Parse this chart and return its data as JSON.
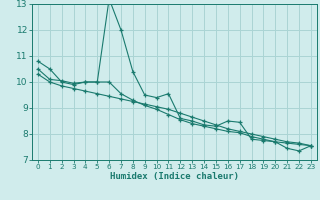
{
  "xlabel": "Humidex (Indice chaleur)",
  "x_values": [
    0,
    1,
    2,
    3,
    4,
    5,
    6,
    7,
    8,
    9,
    10,
    11,
    12,
    13,
    14,
    15,
    16,
    17,
    18,
    19,
    20,
    21,
    22,
    23
  ],
  "line1_y": [
    10.8,
    10.5,
    10.0,
    9.9,
    10.0,
    10.0,
    13.2,
    12.0,
    10.4,
    9.5,
    9.4,
    9.55,
    8.6,
    8.5,
    8.35,
    8.3,
    8.5,
    8.45,
    7.8,
    7.75,
    7.7,
    7.45,
    7.35,
    7.55
  ],
  "line2_y": [
    10.5,
    10.1,
    10.05,
    9.95,
    10.0,
    10.0,
    10.0,
    9.55,
    9.3,
    9.1,
    8.95,
    8.75,
    8.55,
    8.4,
    8.3,
    8.2,
    8.1,
    8.05,
    7.9,
    7.8,
    7.7,
    7.65,
    7.6,
    7.55
  ],
  "line3_y": [
    10.3,
    10.0,
    9.85,
    9.75,
    9.65,
    9.55,
    9.45,
    9.35,
    9.25,
    9.15,
    9.05,
    8.95,
    8.8,
    8.65,
    8.5,
    8.35,
    8.2,
    8.1,
    8.0,
    7.9,
    7.8,
    7.7,
    7.65,
    7.55
  ],
  "line_color": "#1a7a6e",
  "bg_color": "#d0ecec",
  "grid_color": "#aad4d4",
  "ylim": [
    7,
    13
  ],
  "xlim_min": -0.5,
  "xlim_max": 23.5,
  "yticks": [
    7,
    8,
    9,
    10,
    11,
    12,
    13
  ],
  "xticks": [
    0,
    1,
    2,
    3,
    4,
    5,
    6,
    7,
    8,
    9,
    10,
    11,
    12,
    13,
    14,
    15,
    16,
    17,
    18,
    19,
    20,
    21,
    22,
    23
  ],
  "xlabel_fontsize": 6.5,
  "ytick_fontsize": 6.5,
  "xtick_fontsize": 5.2
}
